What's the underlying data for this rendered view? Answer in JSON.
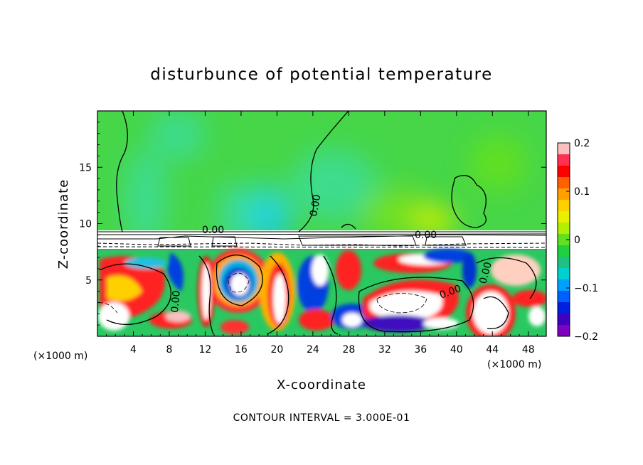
{
  "chart_data": {
    "type": "heatmap",
    "title": "disturbunce of potential temperature",
    "xlabel": "X-coordinate",
    "ylabel": "Z-coordinate",
    "x_unit": "(×1000 m)",
    "x_ticks": [
      4,
      8,
      12,
      16,
      20,
      24,
      28,
      32,
      36,
      40,
      44,
      48
    ],
    "y_ticks": [
      5,
      10,
      15
    ],
    "xlim": [
      0,
      50
    ],
    "ylim": [
      0,
      20
    ],
    "colorbar": {
      "min": -0.2,
      "max": 0.2,
      "ticks": [
        {
          "value": 0.2,
          "label": "0.2"
        },
        {
          "value": 0.1,
          "label": "0.1"
        },
        {
          "value": 0,
          "label": "0"
        },
        {
          "value": -0.1,
          "label": "−0.1"
        },
        {
          "value": -0.2,
          "label": "−0.2"
        }
      ],
      "colors": [
        "#f8c0c0",
        "#ff3050",
        "#ff0000",
        "#ff6000",
        "#ffa000",
        "#ffd000",
        "#e8f000",
        "#b0f000",
        "#60e020",
        "#20d040",
        "#20c080",
        "#00d0d0",
        "#00a0ff",
        "#0060ff",
        "#0020e0",
        "#4000c0",
        "#8000c0"
      ]
    },
    "contour_labels": [
      "0.00",
      "0.00",
      "0.00",
      "0.00",
      "0.00",
      "0.00"
    ],
    "note": "CONTOUR INTERVAL = 3.000E-01"
  }
}
